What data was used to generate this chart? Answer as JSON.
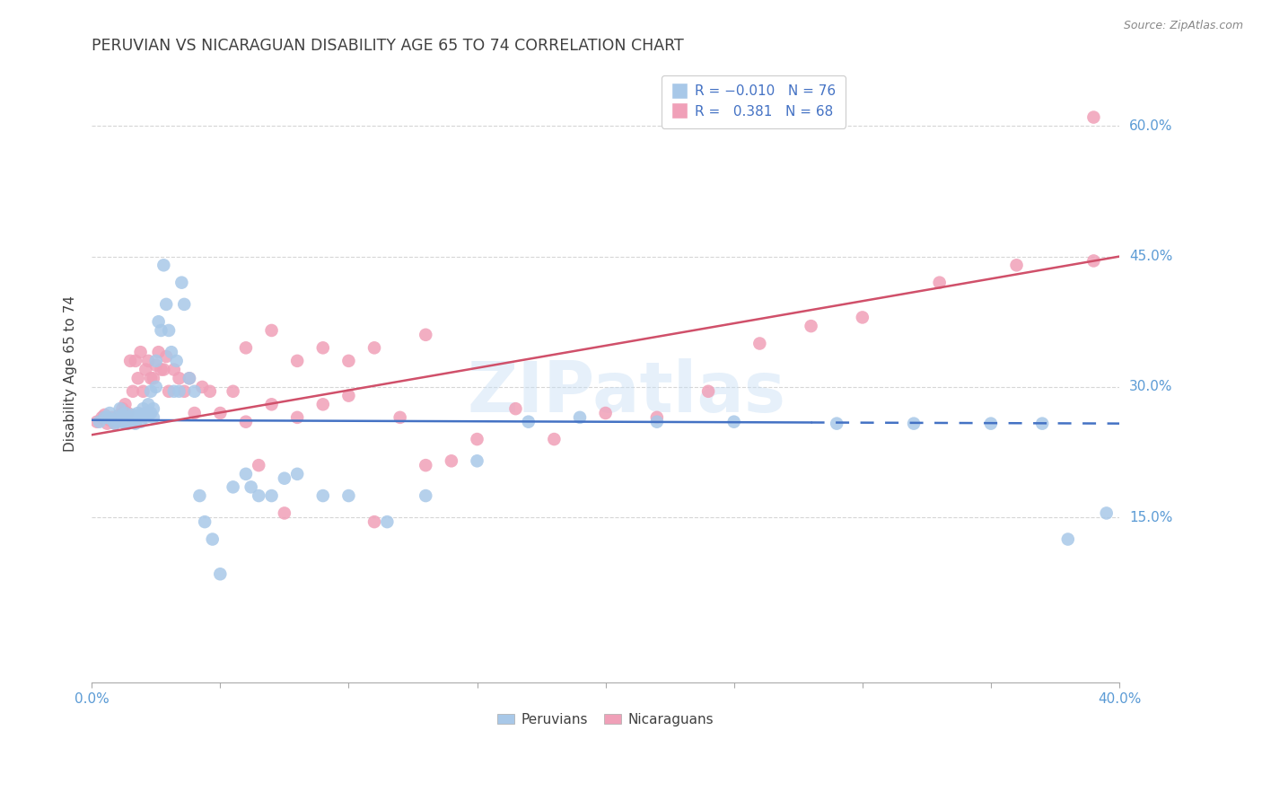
{
  "title": "PERUVIAN VS NICARAGUAN DISABILITY AGE 65 TO 74 CORRELATION CHART",
  "source": "Source: ZipAtlas.com",
  "ylabel": "Disability Age 65 to 74",
  "ytick_vals": [
    0.6,
    0.45,
    0.3,
    0.15
  ],
  "ytick_labels": [
    "60.0%",
    "45.0%",
    "30.0%",
    "15.0%"
  ],
  "xlim": [
    0.0,
    0.4
  ],
  "ylim": [
    -0.04,
    0.67
  ],
  "blue_color": "#A8C8E8",
  "pink_color": "#F0A0B8",
  "blue_line_color": "#4472C4",
  "pink_line_color": "#D0506A",
  "title_color": "#404040",
  "axis_label_color": "#5B9BD5",
  "watermark": "ZIPatlas",
  "blue_line_solid_end": 0.28,
  "peruvians_x": [
    0.003,
    0.005,
    0.006,
    0.007,
    0.008,
    0.009,
    0.01,
    0.01,
    0.011,
    0.012,
    0.012,
    0.013,
    0.013,
    0.014,
    0.014,
    0.015,
    0.015,
    0.016,
    0.016,
    0.017,
    0.017,
    0.018,
    0.018,
    0.019,
    0.019,
    0.02,
    0.02,
    0.021,
    0.021,
    0.022,
    0.022,
    0.023,
    0.023,
    0.024,
    0.024,
    0.025,
    0.025,
    0.026,
    0.027,
    0.028,
    0.029,
    0.03,
    0.031,
    0.032,
    0.033,
    0.034,
    0.035,
    0.036,
    0.038,
    0.04,
    0.042,
    0.044,
    0.047,
    0.05,
    0.055,
    0.06,
    0.065,
    0.07,
    0.08,
    0.09,
    0.1,
    0.115,
    0.13,
    0.15,
    0.17,
    0.19,
    0.22,
    0.25,
    0.29,
    0.32,
    0.35,
    0.37,
    0.38,
    0.395,
    0.062,
    0.075
  ],
  "peruvians_y": [
    0.26,
    0.265,
    0.265,
    0.27,
    0.262,
    0.258,
    0.265,
    0.26,
    0.275,
    0.268,
    0.26,
    0.27,
    0.258,
    0.265,
    0.258,
    0.265,
    0.26,
    0.268,
    0.262,
    0.265,
    0.258,
    0.265,
    0.27,
    0.268,
    0.26,
    0.275,
    0.268,
    0.265,
    0.27,
    0.28,
    0.268,
    0.295,
    0.27,
    0.265,
    0.275,
    0.3,
    0.33,
    0.375,
    0.365,
    0.44,
    0.395,
    0.365,
    0.34,
    0.295,
    0.33,
    0.295,
    0.42,
    0.395,
    0.31,
    0.295,
    0.175,
    0.145,
    0.125,
    0.085,
    0.185,
    0.2,
    0.175,
    0.175,
    0.2,
    0.175,
    0.175,
    0.145,
    0.175,
    0.215,
    0.26,
    0.265,
    0.26,
    0.26,
    0.258,
    0.258,
    0.258,
    0.258,
    0.125,
    0.155,
    0.185,
    0.195
  ],
  "nicaraguans_x": [
    0.002,
    0.004,
    0.005,
    0.006,
    0.007,
    0.008,
    0.009,
    0.01,
    0.011,
    0.012,
    0.013,
    0.014,
    0.015,
    0.016,
    0.017,
    0.018,
    0.019,
    0.02,
    0.021,
    0.022,
    0.023,
    0.024,
    0.025,
    0.026,
    0.027,
    0.028,
    0.029,
    0.03,
    0.032,
    0.034,
    0.036,
    0.038,
    0.04,
    0.043,
    0.046,
    0.05,
    0.055,
    0.06,
    0.065,
    0.07,
    0.075,
    0.08,
    0.09,
    0.1,
    0.11,
    0.12,
    0.13,
    0.14,
    0.15,
    0.165,
    0.18,
    0.2,
    0.22,
    0.24,
    0.26,
    0.28,
    0.3,
    0.33,
    0.36,
    0.39,
    0.06,
    0.07,
    0.08,
    0.09,
    0.1,
    0.39,
    0.11,
    0.13
  ],
  "nicaraguans_y": [
    0.26,
    0.265,
    0.268,
    0.258,
    0.262,
    0.265,
    0.258,
    0.265,
    0.268,
    0.275,
    0.28,
    0.27,
    0.33,
    0.295,
    0.33,
    0.31,
    0.34,
    0.295,
    0.32,
    0.33,
    0.31,
    0.31,
    0.325,
    0.34,
    0.32,
    0.32,
    0.335,
    0.295,
    0.32,
    0.31,
    0.295,
    0.31,
    0.27,
    0.3,
    0.295,
    0.27,
    0.295,
    0.26,
    0.21,
    0.28,
    0.155,
    0.265,
    0.28,
    0.29,
    0.145,
    0.265,
    0.21,
    0.215,
    0.24,
    0.275,
    0.24,
    0.27,
    0.265,
    0.295,
    0.35,
    0.37,
    0.38,
    0.42,
    0.44,
    0.445,
    0.345,
    0.365,
    0.33,
    0.345,
    0.33,
    0.61,
    0.345,
    0.36
  ]
}
